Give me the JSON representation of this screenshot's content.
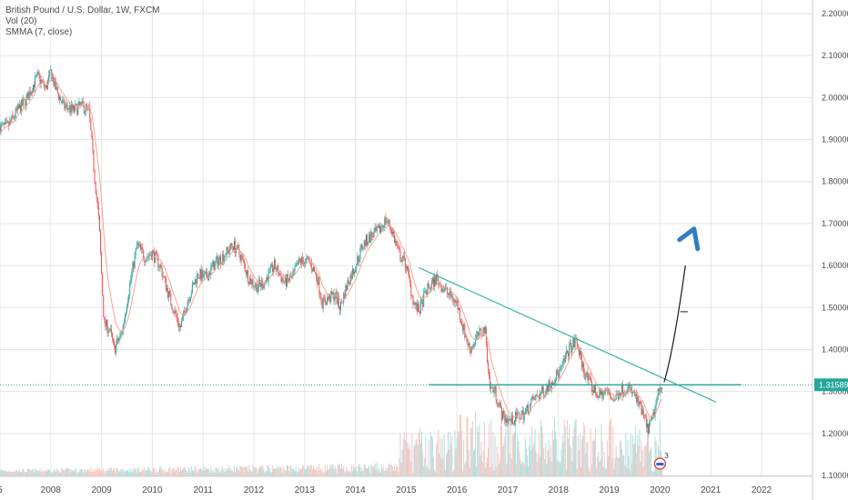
{
  "legend": {
    "symbol": "British Pound / U.S. Dollar, 1W, FXCM",
    "volume": "Vol (20)",
    "ma": "SMMA (7, close)"
  },
  "price_badge": "1.31589",
  "event_badge": "3",
  "colors": {
    "up": "#26a69a",
    "down": "#ef5350",
    "ma": "#f4a896",
    "trendline": "#37b8a6",
    "support": "#26a69a",
    "arrow": "#2f7fc0",
    "grid": "#e6e6e6",
    "axis_text": "#4a4a4a",
    "price_badge_bg": "#26a69a"
  },
  "chart_data": {
    "type": "candlestick",
    "title": "British Pound / U.S. Dollar, 1W, FXCM",
    "x_tick_labels": [
      "5",
      "2008",
      "2009",
      "2010",
      "2011",
      "2012",
      "2013",
      "2014",
      "2015",
      "2016",
      "2017",
      "2018",
      "2019",
      "2020",
      "2021",
      "2022"
    ],
    "x_tick_years": [
      2006.85,
      2007.85,
      2008.85,
      2009.85,
      2010.85,
      2011.85,
      2012.85,
      2013.85,
      2014.85,
      2015.85,
      2016.85,
      2017.85,
      2018.85,
      2019.85,
      2020.85,
      2021.85
    ],
    "y_tick_labels": [
      "2.20000",
      "2.10000",
      "2.00000",
      "1.90000",
      "1.80000",
      "1.70000",
      "1.60000",
      "1.50000",
      "1.40000",
      "1.30000",
      "1.20000",
      "1.10000"
    ],
    "y_ticks": [
      2.2,
      2.1,
      2.0,
      1.9,
      1.8,
      1.7,
      1.6,
      1.5,
      1.4,
      1.3,
      1.2,
      1.1
    ],
    "ylim": [
      1.1,
      2.22
    ],
    "xlim": [
      2006.85,
      2023.0
    ],
    "last_price": 1.31589,
    "close_path": [
      [
        2007.0,
        1.93
      ],
      [
        2007.2,
        1.97
      ],
      [
        2007.35,
        1.99
      ],
      [
        2007.5,
        2.03
      ],
      [
        2007.6,
        2.05
      ],
      [
        2007.75,
        2.02
      ],
      [
        2007.85,
        2.06
      ],
      [
        2007.95,
        2.02
      ],
      [
        2008.1,
        1.98
      ],
      [
        2008.3,
        1.97
      ],
      [
        2008.45,
        1.98
      ],
      [
        2008.6,
        1.97
      ],
      [
        2008.7,
        1.83
      ],
      [
        2008.8,
        1.7
      ],
      [
        2008.9,
        1.46
      ],
      [
        2009.0,
        1.45
      ],
      [
        2009.1,
        1.4
      ],
      [
        2009.25,
        1.44
      ],
      [
        2009.4,
        1.55
      ],
      [
        2009.55,
        1.65
      ],
      [
        2009.7,
        1.62
      ],
      [
        2009.85,
        1.63
      ],
      [
        2010.0,
        1.6
      ],
      [
        2010.2,
        1.52
      ],
      [
        2010.4,
        1.45
      ],
      [
        2010.55,
        1.52
      ],
      [
        2010.75,
        1.58
      ],
      [
        2010.9,
        1.57
      ],
      [
        2011.05,
        1.6
      ],
      [
        2011.3,
        1.63
      ],
      [
        2011.45,
        1.65
      ],
      [
        2011.6,
        1.62
      ],
      [
        2011.75,
        1.57
      ],
      [
        2011.9,
        1.55
      ],
      [
        2012.05,
        1.56
      ],
      [
        2012.25,
        1.6
      ],
      [
        2012.45,
        1.56
      ],
      [
        2012.6,
        1.57
      ],
      [
        2012.75,
        1.61
      ],
      [
        2012.95,
        1.61
      ],
      [
        2013.1,
        1.57
      ],
      [
        2013.2,
        1.51
      ],
      [
        2013.3,
        1.52
      ],
      [
        2013.45,
        1.53
      ],
      [
        2013.55,
        1.5
      ],
      [
        2013.7,
        1.56
      ],
      [
        2013.85,
        1.6
      ],
      [
        2014.0,
        1.65
      ],
      [
        2014.15,
        1.67
      ],
      [
        2014.3,
        1.68
      ],
      [
        2014.45,
        1.71
      ],
      [
        2014.55,
        1.69
      ],
      [
        2014.7,
        1.63
      ],
      [
        2014.85,
        1.6
      ],
      [
        2015.0,
        1.51
      ],
      [
        2015.1,
        1.49
      ],
      [
        2015.25,
        1.54
      ],
      [
        2015.45,
        1.57
      ],
      [
        2015.55,
        1.55
      ],
      [
        2015.7,
        1.53
      ],
      [
        2015.85,
        1.51
      ],
      [
        2016.0,
        1.44
      ],
      [
        2016.1,
        1.4
      ],
      [
        2016.25,
        1.43
      ],
      [
        2016.4,
        1.45
      ],
      [
        2016.5,
        1.31
      ],
      [
        2016.6,
        1.3
      ],
      [
        2016.75,
        1.24
      ],
      [
        2016.9,
        1.23
      ],
      [
        2017.05,
        1.24
      ],
      [
        2017.2,
        1.25
      ],
      [
        2017.35,
        1.28
      ],
      [
        2017.55,
        1.3
      ],
      [
        2017.75,
        1.33
      ],
      [
        2017.9,
        1.35
      ],
      [
        2018.05,
        1.4
      ],
      [
        2018.2,
        1.42
      ],
      [
        2018.35,
        1.35
      ],
      [
        2018.5,
        1.31
      ],
      [
        2018.65,
        1.29
      ],
      [
        2018.8,
        1.3
      ],
      [
        2018.95,
        1.28
      ],
      [
        2019.05,
        1.3
      ],
      [
        2019.2,
        1.31
      ],
      [
        2019.35,
        1.29
      ],
      [
        2019.5,
        1.25
      ],
      [
        2019.6,
        1.21
      ],
      [
        2019.7,
        1.23
      ],
      [
        2019.8,
        1.29
      ],
      [
        2019.9,
        1.32
      ]
    ],
    "annotations": {
      "descending_trendline": [
        [
          2015.1,
          1.595
        ],
        [
          2020.95,
          1.275
        ]
      ],
      "horizontal_support": [
        [
          2015.3,
          1.3159
        ],
        [
          2021.45,
          1.3159
        ]
      ],
      "projection_path": [
        [
          2019.93,
          1.322
        ],
        [
          2020.05,
          1.37
        ],
        [
          2020.2,
          1.47
        ],
        [
          2020.35,
          1.6
        ]
      ],
      "projection_tick": [
        [
          2020.25,
          1.49
        ],
        [
          2020.4,
          1.49
        ]
      ],
      "arrow_head_at": [
        2020.52,
        1.67
      ]
    }
  }
}
